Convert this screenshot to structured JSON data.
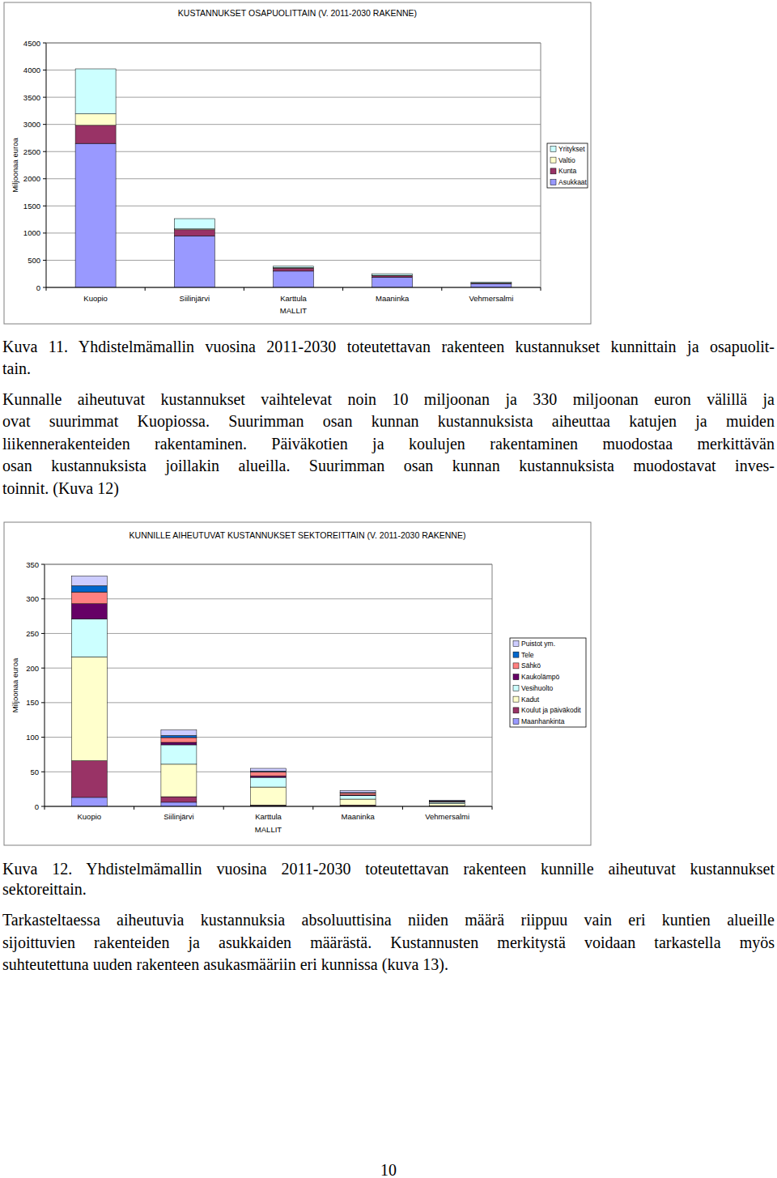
{
  "chart_data": [
    {
      "type": "bar",
      "stacked": true,
      "grid": true,
      "legend": "right",
      "title": "KUSTANNUKSET OSAPUOLITTAIN (V. 2011-2030 RAKENNE)",
      "x_label": "MALLIT",
      "y_label": "Miljoonaa euroa",
      "categories": [
        "Kuopio",
        "Siilinjärvi",
        "Karttula",
        "Maaninka",
        "Vehmersalmi"
      ],
      "ylim": [
        0,
        4500
      ],
      "yticks": [
        0,
        500,
        1000,
        1500,
        2000,
        2500,
        3000,
        3500,
        4000,
        4500
      ],
      "series": [
        {
          "name": "Asukkaat",
          "color": "#9999ff",
          "values": [
            2650,
            950,
            300,
            190,
            65
          ]
        },
        {
          "name": "Kunta",
          "color": "#993366",
          "values": [
            333,
            111,
            55,
            22,
            9
          ]
        },
        {
          "name": "Valtio",
          "color": "#ffffcc",
          "values": [
            210,
            15,
            10,
            10,
            5
          ]
        },
        {
          "name": "Yritykset",
          "color": "#ccffff",
          "values": [
            830,
            190,
            25,
            30,
            20
          ]
        }
      ]
    },
    {
      "type": "bar",
      "stacked": true,
      "grid": true,
      "legend": "right",
      "title": "KUNNILLE AIHEUTUVAT KUSTANNUKSET SEKTOREITTAIN (V. 2011-2030 RAKENNE)",
      "x_label": "MALLIT",
      "y_label": "Miljoonaa euroa",
      "categories": [
        "Kuopio",
        "Siilinjärvi",
        "Karttula",
        "Maaninka",
        "Vehmersalmi"
      ],
      "ylim": [
        0,
        350
      ],
      "yticks": [
        0,
        50,
        100,
        150,
        200,
        250,
        300,
        350
      ],
      "series": [
        {
          "name": "Maanhankinta",
          "color": "#9999ff",
          "values": [
            13,
            6,
            1,
            0.5,
            0.5
          ]
        },
        {
          "name": "Koulut ja päiväkodit",
          "color": "#993366",
          "values": [
            53,
            8,
            1,
            1.5,
            0.5
          ]
        },
        {
          "name": "Kadut",
          "color": "#ffffcc",
          "values": [
            150,
            47,
            26,
            8.5,
            3
          ]
        },
        {
          "name": "Vesihuolto",
          "color": "#ccffff",
          "values": [
            55,
            28,
            14,
            5,
            2
          ]
        },
        {
          "name": "Kaukolämpö",
          "color": "#660066",
          "values": [
            22,
            3.5,
            2,
            1,
            0.5
          ]
        },
        {
          "name": "Sähkö",
          "color": "#ff8080",
          "values": [
            17,
            7,
            6,
            3,
            1
          ]
        },
        {
          "name": "Tele",
          "color": "#0066cc",
          "values": [
            9,
            3,
            1,
            0.5,
            0.5
          ]
        },
        {
          "name": "Puistot ym.",
          "color": "#ccccff",
          "values": [
            14,
            8,
            4,
            3,
            1
          ]
        }
      ]
    }
  ],
  "text": {
    "caption_11": [
      "Kuva 11. Yhdistelmämallin vuosina 2011-2030 toteutettavan rakenteen kustannukset kunnittain ja osapuolit-",
      "tain."
    ],
    "paragraph_1": [
      "Kunnalle aiheutuvat kustannukset vaihtelevat noin 10 miljoonan ja 330 miljoonan euron välillä ja",
      "ovat suurimmat Kuopiossa. Suurimman osan kunnan kustannuksista aiheuttaa katujen ja muiden",
      "liikennerakenteiden rakentaminen. Päiväkotien ja koulujen rakentaminen muodostaa merkittävän",
      "osan kustannuksista joillakin alueilla. Suurimman osan kunnan kustannuksista muodostavat inves-",
      "toinnit. (Kuva 12)"
    ],
    "caption_12": [
      "Kuva 12. Yhdistelmämallin vuosina 2011-2030 toteutettavan rakenteen kunnille aiheutuvat kustannukset",
      "sektoreittain."
    ],
    "paragraph_2": [
      "Tarkasteltaessa aiheutuvia kustannuksia absoluuttisina niiden määrä riippuu vain eri kuntien alueille",
      "sijoittuvien rakenteiden ja asukkaiden määrästä. Kustannusten merkitystä voidaan tarkastella myös",
      "suhteutettuna uuden rakenteen asukasmääriin eri kunnissa (kuva 13)."
    ],
    "page_number": "10"
  }
}
